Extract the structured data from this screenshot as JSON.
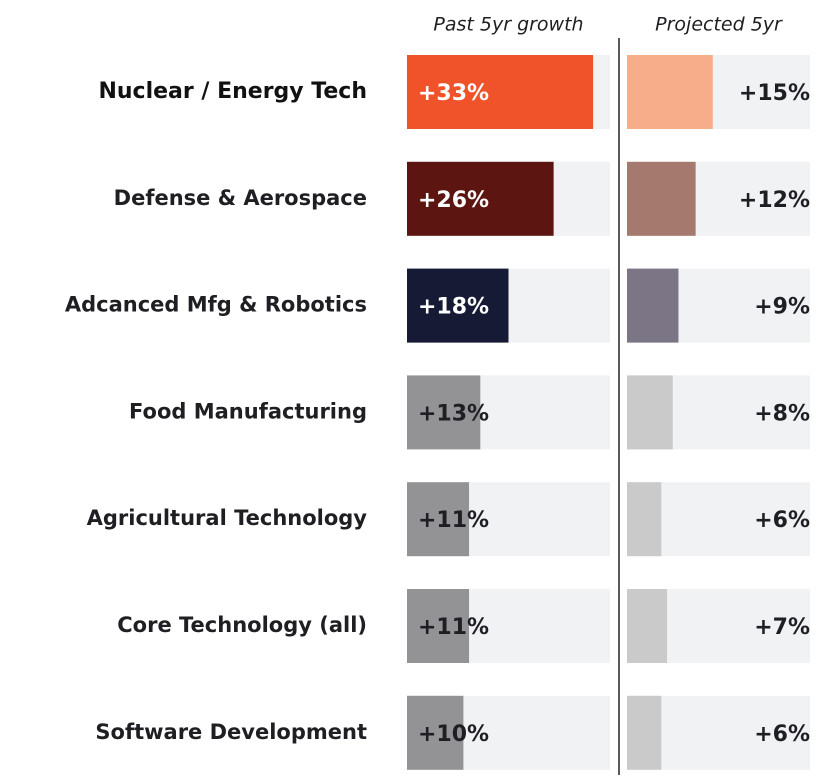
{
  "chart_data": {
    "type": "bar",
    "orientation": "horizontal",
    "categories": [
      "Nuclear / Energy Tech",
      "Defense & Aerospace",
      "Adcanced Mfg & Robotics",
      "Food Manufacturing",
      "Agricultural Technology",
      "Core Technology (all)",
      "Software Development"
    ],
    "series": [
      {
        "name": "Past 5yr growth",
        "colors": [
          "#f0522a",
          "#5c1511",
          "#161a35",
          "#939396",
          "#939396",
          "#939396",
          "#939396"
        ],
        "values": [
          33,
          26,
          18,
          13,
          11,
          11,
          10
        ],
        "value_labels": [
          "+33%",
          "+26%",
          "+18%",
          "+13%",
          "+11%",
          "+11%",
          "+10%"
        ],
        "xlim": [
          0,
          36
        ]
      },
      {
        "name": "Projected 5yr",
        "colors": [
          "#f8ad8a",
          "#a5796d",
          "#7b7585",
          "#cacaca",
          "#cacaca",
          "#cacaca",
          "#cacaca"
        ],
        "values": [
          15,
          12,
          9,
          8,
          6,
          7,
          6
        ],
        "value_labels": [
          "+15%",
          "+12%",
          "+9%",
          "+8%",
          "+6%",
          "+7%",
          "+6%"
        ],
        "xlim": [
          0,
          32
        ]
      }
    ]
  }
}
